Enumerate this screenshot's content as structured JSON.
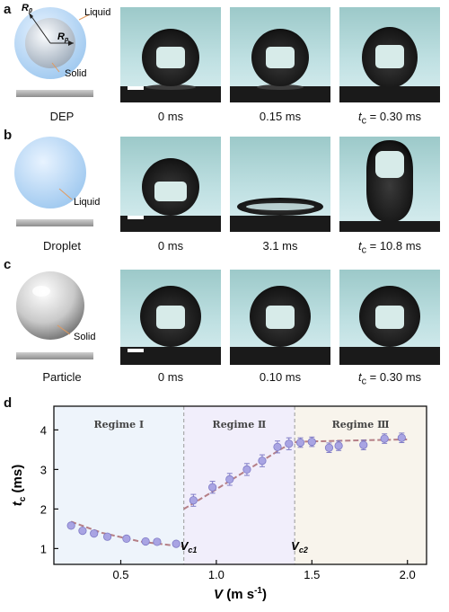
{
  "panels": {
    "a": {
      "letter": "a",
      "label": "DEP",
      "schematic": {
        "r0": "R",
        "r0_sub": "0",
        "rp": "R",
        "rp_sub": "p",
        "liquid": "Liquid",
        "solid": "Solid"
      },
      "frames": [
        "0 ms",
        "0.15 ms",
        "0.30 ms"
      ],
      "last_prefix": "t",
      "last_sub": "c"
    },
    "b": {
      "letter": "b",
      "label": "Droplet",
      "schematic": {
        "liquid": "Liquid"
      },
      "frames": [
        "0 ms",
        "3.1 ms",
        "10.8 ms"
      ],
      "last_prefix": "t",
      "last_sub": "c"
    },
    "c": {
      "letter": "c",
      "label": "Particle",
      "schematic": {
        "solid": "Solid"
      },
      "frames": [
        "0 ms",
        "0.10 ms",
        "0.30 ms"
      ],
      "last_prefix": "t",
      "last_sub": "c"
    },
    "d": {
      "letter": "d"
    }
  },
  "chart_data": {
    "type": "scatter",
    "xlabel": "V",
    "xlabel_unit": "(m s",
    "xlabel_exp": "-1",
    "ylabel": "t",
    "ylabel_sub": "c",
    "ylabel_unit": "(ms)",
    "xlim": [
      0.15,
      2.1
    ],
    "ylim": [
      0.6,
      4.6
    ],
    "xticks": [
      0.5,
      1.0,
      1.5,
      2.0
    ],
    "xtick_labels": [
      "0.5",
      "1.0",
      "1.5",
      "2.0"
    ],
    "yticks": [
      1,
      2,
      3,
      4
    ],
    "ytick_labels": [
      "1",
      "2",
      "3",
      "4"
    ],
    "regimes": [
      {
        "label": "Regime Ⅰ",
        "from": 0.15,
        "to": 0.83,
        "color": "#eef4fb"
      },
      {
        "label": "Regime Ⅱ",
        "from": 0.83,
        "to": 1.41,
        "color": "#f1eefb"
      },
      {
        "label": "Regime Ⅲ",
        "from": 1.41,
        "to": 2.1,
        "color": "#f8f4ec"
      }
    ],
    "critical": [
      {
        "label": "V",
        "sub": "c1",
        "x": 0.83
      },
      {
        "label": "V",
        "sub": "c2",
        "x": 1.41
      }
    ],
    "points": [
      {
        "x": 0.24,
        "y": 1.58,
        "err": 0.06
      },
      {
        "x": 0.3,
        "y": 1.45,
        "err": 0.06
      },
      {
        "x": 0.36,
        "y": 1.38,
        "err": 0.06
      },
      {
        "x": 0.43,
        "y": 1.3,
        "err": 0.06
      },
      {
        "x": 0.53,
        "y": 1.25,
        "err": 0.06
      },
      {
        "x": 0.63,
        "y": 1.18,
        "err": 0.06
      },
      {
        "x": 0.69,
        "y": 1.17,
        "err": 0.06
      },
      {
        "x": 0.79,
        "y": 1.12,
        "err": 0.06
      },
      {
        "x": 0.88,
        "y": 2.22,
        "err": 0.15
      },
      {
        "x": 0.98,
        "y": 2.55,
        "err": 0.15
      },
      {
        "x": 1.07,
        "y": 2.75,
        "err": 0.15
      },
      {
        "x": 1.16,
        "y": 3.0,
        "err": 0.15
      },
      {
        "x": 1.24,
        "y": 3.22,
        "err": 0.15
      },
      {
        "x": 1.32,
        "y": 3.57,
        "err": 0.15
      },
      {
        "x": 1.38,
        "y": 3.65,
        "err": 0.15
      },
      {
        "x": 1.44,
        "y": 3.68,
        "err": 0.12
      },
      {
        "x": 1.5,
        "y": 3.7,
        "err": 0.12
      },
      {
        "x": 1.59,
        "y": 3.55,
        "err": 0.12
      },
      {
        "x": 1.64,
        "y": 3.6,
        "err": 0.12
      },
      {
        "x": 1.77,
        "y": 3.62,
        "err": 0.12
      },
      {
        "x": 1.88,
        "y": 3.78,
        "err": 0.12
      },
      {
        "x": 1.97,
        "y": 3.8,
        "err": 0.12
      }
    ],
    "fit": [
      {
        "x": 0.24,
        "y": 1.68
      },
      {
        "x": 0.4,
        "y": 1.4
      },
      {
        "x": 0.6,
        "y": 1.18
      },
      {
        "x": 0.82,
        "y": 1.05
      },
      {
        "x": 0.83,
        "y": 2.0
      },
      {
        "x": 0.95,
        "y": 2.35
      },
      {
        "x": 1.1,
        "y": 2.8
      },
      {
        "x": 1.25,
        "y": 3.25
      },
      {
        "x": 1.35,
        "y": 3.55
      },
      {
        "x": 1.42,
        "y": 3.7
      },
      {
        "x": 1.6,
        "y": 3.72
      },
      {
        "x": 1.8,
        "y": 3.74
      },
      {
        "x": 2.0,
        "y": 3.76
      }
    ],
    "colors": {
      "marker": "#a9a4e3",
      "marker_edge": "#7f7bc6",
      "fit": "#b57f86",
      "axis": "#111111"
    }
  }
}
